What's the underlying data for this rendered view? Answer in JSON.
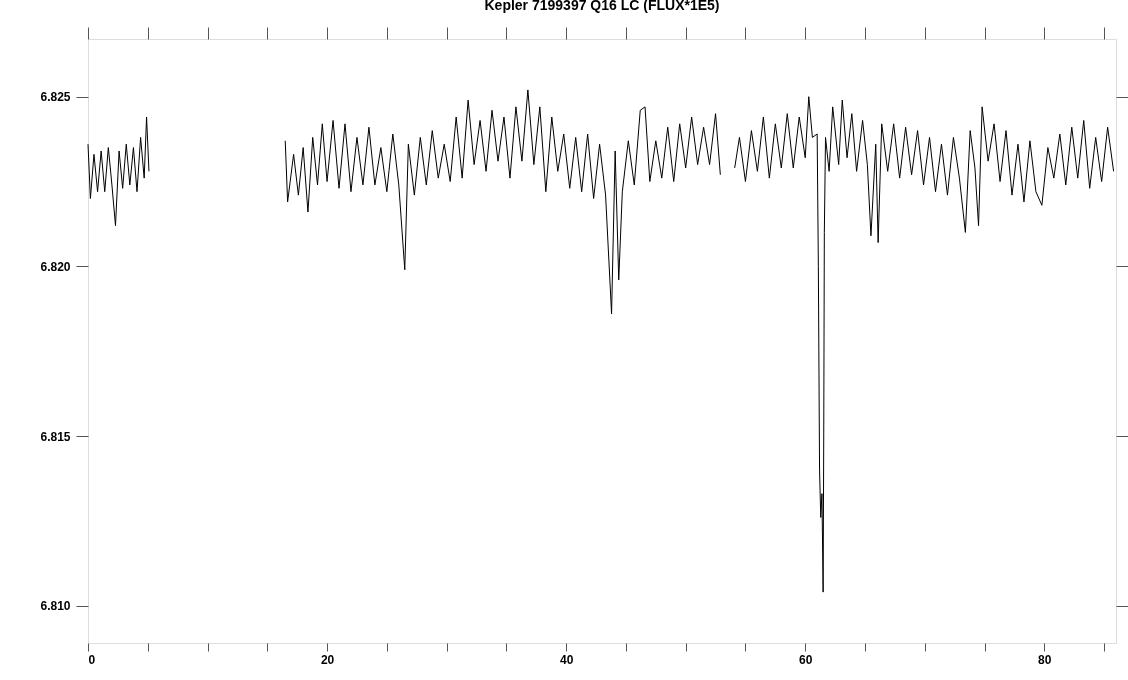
{
  "chart_data": {
    "type": "line",
    "title": "Kepler 7199397 Q16 LC (FLUX*1E5)",
    "xlim": [
      0,
      86
    ],
    "ylim": [
      6.8089,
      6.8267
    ],
    "xticks": [
      0,
      {
        "value": 5,
        "label": null
      },
      {
        "value": 10,
        "label": null
      },
      {
        "value": 15,
        "label": null
      },
      20,
      {
        "value": 25,
        "label": null
      },
      {
        "value": 30,
        "label": null
      },
      {
        "value": 35,
        "label": null
      },
      40,
      {
        "value": 45,
        "label": null
      },
      {
        "value": 50,
        "label": null
      },
      {
        "value": 55,
        "label": null
      },
      60,
      {
        "value": 65,
        "label": null
      },
      {
        "value": 70,
        "label": null
      },
      {
        "value": 75,
        "label": null
      },
      80,
      {
        "value": 85,
        "label": null
      }
    ],
    "yticks": [
      {
        "value": 6.81,
        "label": "6.810"
      },
      6.815,
      {
        "value": 6.82,
        "label": "6.820"
      },
      6.825
    ],
    "grid": false,
    "legend": false,
    "marker": "none",
    "line_style": "solid",
    "series": [
      {
        "color": "#000000",
        "x": [
          0.0,
          0.2,
          0.5,
          0.8,
          1.1,
          1.4,
          1.7,
          2.0,
          2.3,
          2.6,
          2.9,
          3.2,
          3.5,
          3.8,
          4.1,
          4.4,
          4.7,
          4.9,
          5.1,
          10,
          16.5,
          16.7,
          17.2,
          17.6,
          18.0,
          18.4,
          18.8,
          19.2,
          19.6,
          20.0,
          20.5,
          21.0,
          21.5,
          22.0,
          22.5,
          23.0,
          23.5,
          24.0,
          24.5,
          25.0,
          25.5,
          26.0,
          26.5,
          26.8,
          27.3,
          27.8,
          28.3,
          28.8,
          29.3,
          29.8,
          30.3,
          30.8,
          31.3,
          31.8,
          32.3,
          32.8,
          33.3,
          33.8,
          34.3,
          34.8,
          35.3,
          35.8,
          36.3,
          36.8,
          37.3,
          37.8,
          38.3,
          38.8,
          39.3,
          39.8,
          40.3,
          40.8,
          41.3,
          41.8,
          42.3,
          42.8,
          43.3,
          43.8,
          44.1,
          44.4,
          44.7,
          45.2,
          45.7,
          46.2,
          46.6,
          47.0,
          47.5,
          48.0,
          48.5,
          49.0,
          49.5,
          50.0,
          50.5,
          51.0,
          51.5,
          52.0,
          52.5,
          52.9,
          53.5,
          54.1,
          54.5,
          55.0,
          55.5,
          56.0,
          56.5,
          57.0,
          57.5,
          58.0,
          58.5,
          59.0,
          59.5,
          60.0,
          60.3,
          60.6,
          61.0,
          61.1,
          61.2,
          61.3,
          61.4,
          61.5,
          61.55,
          61.6,
          61.7,
          62.0,
          62.3,
          62.8,
          63.1,
          63.5,
          63.9,
          64.3,
          64.8,
          65.2,
          65.5,
          65.9,
          66.1,
          66.4,
          66.9,
          67.4,
          67.9,
          68.4,
          68.9,
          69.4,
          69.9,
          70.4,
          70.9,
          71.4,
          71.9,
          72.4,
          72.9,
          73.4,
          73.8,
          74.2,
          74.5,
          74.8,
          75.3,
          75.8,
          76.3,
          76.8,
          77.3,
          77.8,
          78.3,
          78.8,
          79.3,
          79.8,
          80.3,
          80.8,
          81.3,
          81.8,
          82.3,
          82.8,
          83.3,
          83.8,
          84.3,
          84.8,
          85.3,
          85.8
        ],
        "values": [
          6.8236,
          6.822,
          6.8233,
          6.8222,
          6.8234,
          6.8222,
          6.8235,
          6.8224,
          6.8212,
          6.8234,
          6.8223,
          6.8236,
          6.8224,
          6.8235,
          6.8222,
          6.8238,
          6.8226,
          6.8244,
          6.8228,
          null,
          6.8237,
          6.8219,
          6.8233,
          6.8221,
          6.8235,
          6.8216,
          6.8238,
          6.8224,
          6.8242,
          6.8225,
          6.8243,
          6.8223,
          6.8242,
          6.8222,
          6.8238,
          6.8224,
          6.8241,
          6.8224,
          6.8235,
          6.8222,
          6.8239,
          6.8224,
          6.8199,
          6.8236,
          6.8221,
          6.8238,
          6.8224,
          6.824,
          6.8226,
          6.8236,
          6.8225,
          6.8244,
          6.8226,
          6.8249,
          6.823,
          6.8243,
          6.8228,
          6.8246,
          6.8231,
          6.8244,
          6.8226,
          6.8247,
          6.8231,
          6.8252,
          6.823,
          6.8247,
          6.8222,
          6.8244,
          6.8228,
          6.8239,
          6.8223,
          6.8238,
          6.8222,
          6.8239,
          6.822,
          6.8236,
          6.8221,
          6.8186,
          6.8234,
          6.8196,
          6.8222,
          6.8237,
          6.8224,
          6.8246,
          6.8247,
          6.8225,
          6.8237,
          6.8226,
          6.8241,
          6.8225,
          6.8242,
          6.8229,
          6.8244,
          6.823,
          6.8241,
          6.823,
          6.8245,
          6.8227,
          null,
          6.8229,
          6.8238,
          6.8225,
          6.824,
          6.8228,
          6.8244,
          6.8226,
          6.8242,
          6.8229,
          6.8245,
          6.8229,
          6.8244,
          6.8232,
          6.825,
          6.8238,
          6.8239,
          6.82,
          6.814,
          6.8126,
          6.8133,
          6.8104,
          6.815,
          6.821,
          6.8238,
          6.8228,
          6.8247,
          6.823,
          6.8249,
          6.8232,
          6.8245,
          6.8228,
          6.8243,
          6.823,
          6.8209,
          6.8236,
          6.8207,
          6.8242,
          6.8228,
          6.8242,
          6.8226,
          6.8241,
          6.8227,
          6.824,
          6.8224,
          6.8238,
          6.8222,
          6.8236,
          6.8221,
          6.8238,
          6.8226,
          6.821,
          6.824,
          6.8229,
          6.8212,
          6.8247,
          6.8231,
          6.8242,
          6.8225,
          6.824,
          6.8221,
          6.8236,
          6.8219,
          6.8237,
          6.8222,
          6.8218,
          6.8235,
          6.8226,
          6.8239,
          6.8224,
          6.8241,
          6.8226,
          6.8243,
          6.8223,
          6.8238,
          6.8225,
          6.8241,
          6.8228
        ]
      }
    ]
  }
}
